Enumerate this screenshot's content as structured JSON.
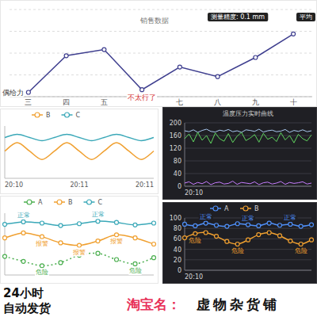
{
  "chart_data": [
    {
      "type": "line",
      "title": "销售数据",
      "categories": [
        "三",
        "四",
        "五",
        null,
        "七",
        "八",
        "九",
        "十"
      ],
      "values": [
        5,
        47,
        54,
        8,
        34,
        23,
        45,
        72
      ],
      "annotations": [
        "偶给力",
        null,
        null,
        "不太行了",
        null,
        null,
        null,
        null
      ],
      "badges": [
        "测量精度: 0.1 mm",
        "平均"
      ],
      "color": "#3f3f8f",
      "marker": "circle",
      "line_style": "solid",
      "ylim": [
        0,
        100
      ],
      "yticks": [
        0,
        25,
        50,
        75,
        100
      ],
      "grid": true,
      "tick_labels": "x"
    },
    {
      "type": "line",
      "categories": [
        "20:10",
        null,
        null,
        null,
        null,
        null,
        "20:11",
        null,
        null,
        null,
        null,
        null,
        "20:11"
      ],
      "series": [
        {
          "name": "B",
          "color": "#f0a030",
          "line_style": "smooth",
          "values": [
            52,
            68,
            52,
            36,
            52,
            68,
            52,
            36,
            52,
            68,
            52,
            36,
            52
          ]
        },
        {
          "name": "C",
          "color": "#3aa8b8",
          "line_style": "smooth",
          "values": [
            78,
            84,
            78,
            72,
            78,
            84,
            78,
            72,
            78,
            84,
            78,
            72,
            78
          ]
        }
      ],
      "ylim": [
        0,
        100
      ],
      "legend": "top",
      "tick_labels": "x"
    },
    {
      "type": "line",
      "categories": [
        null,
        null,
        null,
        null,
        null,
        null,
        null,
        null,
        null
      ],
      "series": [
        {
          "name": "A",
          "color": "#4caf50",
          "line_style": "dotted",
          "marker": "circle",
          "values": [
            30,
            22,
            15,
            20,
            32,
            35,
            25,
            18,
            28
          ],
          "annotations": [
            null,
            null,
            "危险",
            null,
            null,
            null,
            null,
            "危险",
            null
          ]
        },
        {
          "name": "B",
          "color": "#f0a030",
          "line_style": "smooth",
          "marker": "circle",
          "values": [
            60,
            68,
            62,
            52,
            48,
            55,
            65,
            60,
            50
          ],
          "annotations": [
            null,
            null,
            "报警",
            null,
            "报警",
            null,
            "报警",
            null,
            null
          ]
        },
        {
          "name": "C",
          "color": "#3aa8b8",
          "line_style": "smooth",
          "marker": "circle",
          "values": [
            82,
            86,
            84,
            80,
            83,
            87,
            85,
            81,
            84
          ],
          "annotations": [
            null,
            "正常",
            null,
            null,
            null,
            "正常",
            null,
            null,
            null
          ]
        }
      ],
      "ylim": [
        0,
        100
      ],
      "legend": "top",
      "tick_labels": false
    },
    {
      "type": "line",
      "title": "温度压力实时曲线",
      "categories": [
        "20:10",
        null,
        null,
        null,
        null,
        null,
        null,
        null,
        null,
        null,
        null,
        null,
        null,
        null,
        null,
        null,
        null,
        null,
        null,
        null,
        null,
        null,
        null,
        null,
        null,
        null,
        null,
        null,
        null,
        null
      ],
      "series": [
        {
          "color": "#a8c8f0",
          "line_style": "solid",
          "values": [
            175,
            172,
            178,
            170,
            176,
            180,
            173,
            171,
            177,
            174,
            179,
            172,
            175,
            170,
            178,
            176,
            173,
            180,
            171,
            175,
            177,
            172,
            174,
            179,
            170,
            176,
            173,
            178,
            172,
            175
          ]
        },
        {
          "color": "#5fd35f",
          "line_style": "solid",
          "values": [
            150,
            165,
            140,
            170,
            145,
            160,
            135,
            168,
            150,
            142,
            166,
            138,
            158,
            170,
            144,
            152,
            163,
            139,
            167,
            148,
            155,
            141,
            169,
            146,
            160,
            137,
            164,
            150,
            143,
            162
          ]
        },
        {
          "color": "#c77dff",
          "line_style": "solid",
          "values": [
            10,
            14,
            6,
            12,
            8,
            15,
            5,
            11,
            13,
            7,
            9,
            16,
            6,
            12,
            10,
            8,
            14,
            5,
            11,
            13,
            7,
            10,
            15,
            6,
            12,
            9,
            11,
            14,
            7,
            10
          ]
        }
      ],
      "ylim": [
        0,
        200
      ],
      "yticks": [
        0,
        40,
        80,
        120,
        160,
        200
      ],
      "grid": true
    },
    {
      "type": "line",
      "categories": [
        "20:10",
        null,
        null,
        null,
        null,
        null,
        null,
        null,
        null,
        null,
        null,
        null,
        null
      ],
      "series": [
        {
          "name": "A",
          "color": "#4f8ff7",
          "line_style": "smooth",
          "marker": "circle",
          "values": [
            88,
            85,
            90,
            86,
            84,
            89,
            87,
            85,
            90,
            86,
            88,
            84,
            87
          ],
          "annotations": [
            null,
            null,
            "正常",
            null,
            null,
            null,
            "正常",
            null,
            null,
            null,
            "正常",
            null,
            null
          ]
        },
        {
          "name": "B",
          "color": "#f0a030",
          "line_style": "smooth",
          "marker": "circle",
          "values": [
            62,
            70,
            72,
            65,
            55,
            50,
            58,
            68,
            72,
            66,
            56,
            50,
            58
          ],
          "annotations": [
            null,
            "危险",
            null,
            null,
            null,
            "危险",
            null,
            null,
            null,
            null,
            null,
            "危险",
            null
          ]
        }
      ],
      "ylim": [
        0,
        100
      ],
      "yticks": [
        0,
        20,
        40,
        60,
        80,
        100
      ],
      "grid": true,
      "legend": "top"
    }
  ],
  "banner": {
    "lines": [
      "24小时",
      "自动发货"
    ],
    "shop_label": "淘宝名：",
    "shop_name": "虚物杂货铺"
  }
}
